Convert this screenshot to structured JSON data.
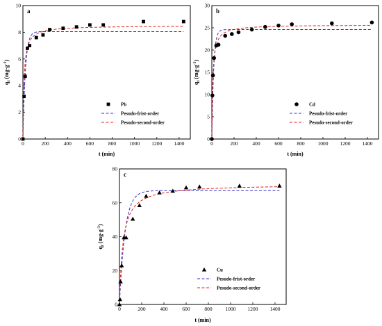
{
  "figure": {
    "colors": {
      "pfo": "#3333cc",
      "pso": "#dd2222",
      "marker": "#000000",
      "axis": "#000000"
    }
  },
  "chart_data": [
    {
      "panel": "a",
      "type": "scatter",
      "marker": "square",
      "xlabel": "t (min)",
      "ylabel": "q_t (mg·g⁻¹)",
      "xlim": [
        0,
        1500
      ],
      "ylim": [
        0,
        10
      ],
      "xticks": [
        0,
        200,
        400,
        600,
        800,
        1000,
        1200,
        1400
      ],
      "yticks": [
        0,
        2,
        4,
        6,
        8,
        10
      ],
      "legend_position": "bottom-right",
      "series": [
        {
          "name": "Pb",
          "kind": "scatter",
          "x": [
            0,
            10,
            20,
            40,
            60,
            120,
            180,
            240,
            360,
            480,
            600,
            720,
            1080,
            1440
          ],
          "y": [
            0,
            3.2,
            4.7,
            6.8,
            7.0,
            7.6,
            7.8,
            8.2,
            8.3,
            8.4,
            8.55,
            8.55,
            8.8,
            8.8
          ]
        },
        {
          "name": "Pesudo-frist-order",
          "kind": "model-line",
          "model": "pfo",
          "qe": 8.05,
          "k": 0.045
        },
        {
          "name": "Pesudo-second-order",
          "kind": "model-line",
          "model": "pso",
          "qe": 8.5,
          "k": 0.012
        }
      ]
    },
    {
      "panel": "b",
      "type": "scatter",
      "marker": "circle",
      "xlabel": "t (min)",
      "ylabel": "q_t (mg·g⁻¹)",
      "xlim": [
        0,
        1500
      ],
      "ylim": [
        0,
        30
      ],
      "xticks": [
        0,
        200,
        400,
        600,
        800,
        1000,
        1200,
        1400
      ],
      "yticks": [
        0,
        5,
        10,
        15,
        20,
        25,
        30
      ],
      "legend_position": "bottom-right",
      "series": [
        {
          "name": "Cd",
          "kind": "scatter",
          "x": [
            0,
            5,
            10,
            20,
            40,
            60,
            120,
            180,
            240,
            360,
            480,
            600,
            720,
            1080,
            1440
          ],
          "y": [
            0,
            9.8,
            14.3,
            18.2,
            21.0,
            21.2,
            23.2,
            23.6,
            24.0,
            24.6,
            25.2,
            25.5,
            25.8,
            26.0,
            26.2
          ]
        },
        {
          "name": "Pesudo-frist-order",
          "kind": "model-line",
          "model": "pfo",
          "qe": 24.6,
          "k": 0.06
        },
        {
          "name": "Pesudo-second-order",
          "kind": "model-line",
          "model": "pso",
          "qe": 25.7,
          "k": 0.0045
        }
      ]
    },
    {
      "panel": "c",
      "type": "scatter",
      "marker": "triangle",
      "xlabel": "t (min)",
      "ylabel": "q_t (mg·g⁻¹)",
      "xlim": [
        0,
        1500
      ],
      "ylim": [
        0,
        80
      ],
      "xticks": [
        0,
        200,
        400,
        600,
        800,
        1000,
        1200,
        1400
      ],
      "yticks": [
        0,
        20,
        40,
        60,
        80
      ],
      "legend_position": "bottom-right",
      "series": [
        {
          "name": "Cu",
          "kind": "scatter",
          "x": [
            0,
            5,
            10,
            20,
            40,
            60,
            120,
            180,
            240,
            360,
            480,
            600,
            720,
            1080,
            1440
          ],
          "y": [
            0,
            3,
            13.5,
            23,
            39.5,
            39.5,
            50.5,
            58.5,
            64,
            66,
            67,
            69,
            69.5,
            70,
            70
          ]
        },
        {
          "name": "Pesudo-frist-order",
          "kind": "model-line",
          "model": "pfo",
          "qe": 67.2,
          "k": 0.02
        },
        {
          "name": "Pesudo-second-order",
          "kind": "model-line",
          "model": "pso",
          "qe": 71.0,
          "k": 0.00045
        }
      ]
    }
  ]
}
